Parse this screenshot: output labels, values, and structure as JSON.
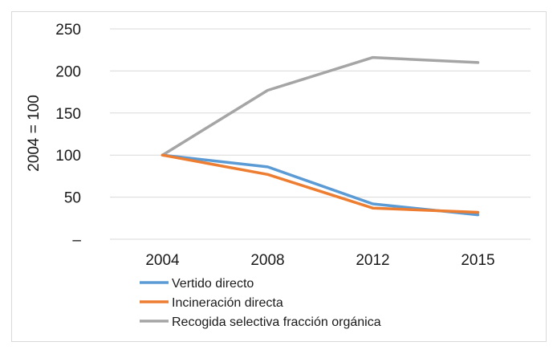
{
  "chart_data": {
    "type": "line",
    "title": "",
    "xlabel": "",
    "ylabel": "2004 = 100",
    "categories": [
      "2004",
      "2008",
      "2012",
      "2015"
    ],
    "y_tick_labels": [
      "–",
      "50",
      "100",
      "150",
      "200",
      "250"
    ],
    "ylim": [
      0,
      250
    ],
    "grid": true,
    "legend_position": "bottom-left",
    "series": [
      {
        "name": "Vertido directo",
        "color": "#5b9bd5",
        "values": [
          100,
          86,
          42,
          29
        ]
      },
      {
        "name": "Incineración directa",
        "color": "#ed7d31",
        "values": [
          100,
          77,
          37,
          32
        ]
      },
      {
        "name": "Recogida selectiva fracción orgánica",
        "color": "#a5a5a5",
        "values": [
          100,
          177,
          216,
          210
        ]
      }
    ]
  }
}
